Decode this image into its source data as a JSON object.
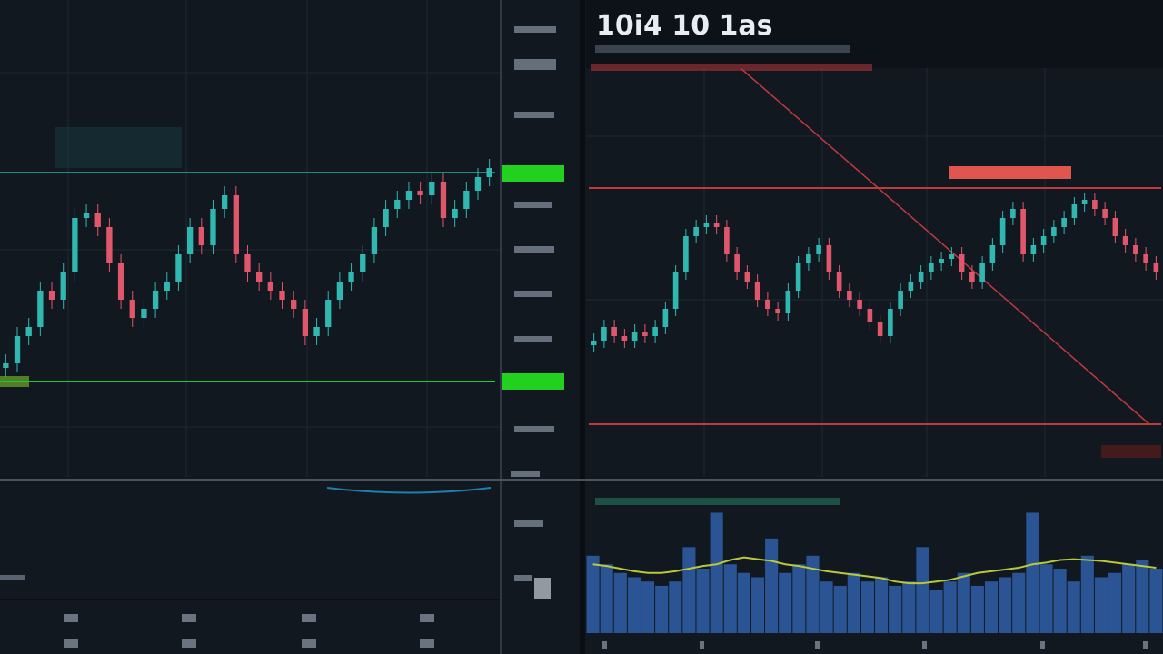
{
  "header": {
    "title": "10i4 10 1as"
  },
  "left_chart": {
    "type": "candlestick",
    "ylim": [
      0,
      525
    ],
    "open": [
      120,
      125,
      155,
      165,
      205,
      195,
      225,
      285,
      290,
      275,
      235,
      195,
      175,
      185,
      205,
      215,
      245,
      275,
      255,
      295,
      310,
      245,
      225,
      215,
      205,
      195,
      185,
      155,
      165,
      195,
      215,
      225,
      245,
      275,
      295,
      305,
      315,
      310,
      325,
      285,
      295,
      315,
      330
    ],
    "high": [
      135,
      165,
      175,
      215,
      215,
      235,
      295,
      300,
      300,
      285,
      245,
      205,
      195,
      215,
      225,
      255,
      285,
      285,
      305,
      320,
      320,
      255,
      235,
      225,
      215,
      205,
      195,
      175,
      205,
      225,
      235,
      255,
      285,
      305,
      315,
      325,
      325,
      335,
      335,
      305,
      325,
      340,
      350
    ],
    "low": [
      110,
      115,
      145,
      155,
      185,
      185,
      215,
      275,
      265,
      225,
      185,
      165,
      165,
      175,
      195,
      205,
      235,
      245,
      245,
      285,
      235,
      215,
      205,
      195,
      185,
      175,
      145,
      145,
      155,
      185,
      205,
      215,
      235,
      265,
      285,
      295,
      300,
      300,
      275,
      275,
      285,
      305,
      320
    ],
    "close": [
      125,
      155,
      165,
      205,
      195,
      225,
      285,
      290,
      275,
      235,
      195,
      175,
      185,
      205,
      215,
      245,
      275,
      255,
      295,
      310,
      245,
      225,
      215,
      205,
      195,
      185,
      155,
      165,
      195,
      215,
      225,
      245,
      275,
      295,
      305,
      315,
      310,
      325,
      285,
      295,
      315,
      330,
      340
    ],
    "up_color": "#2fb7b0",
    "down_color": "#e0566a",
    "levels": [
      {
        "value": 335,
        "color": "#1e8a80"
      },
      {
        "value": 105,
        "color": "#22c43a"
      }
    ]
  },
  "right_chart": {
    "type": "candlestick",
    "ylim": [
      0,
      450
    ],
    "open": [
      145,
      150,
      165,
      155,
      150,
      160,
      155,
      165,
      185,
      225,
      265,
      275,
      280,
      275,
      245,
      225,
      215,
      195,
      185,
      180,
      205,
      235,
      245,
      255,
      225,
      205,
      195,
      185,
      170,
      155,
      185,
      205,
      215,
      225,
      235,
      240,
      245,
      225,
      215,
      235,
      255,
      285,
      295,
      245,
      255,
      265,
      275,
      285,
      300,
      305,
      295,
      285,
      265,
      255,
      245,
      235
    ],
    "high": [
      158,
      173,
      173,
      163,
      168,
      168,
      173,
      193,
      233,
      273,
      283,
      288,
      288,
      283,
      253,
      233,
      223,
      203,
      193,
      213,
      243,
      253,
      263,
      263,
      233,
      213,
      203,
      193,
      178,
      193,
      213,
      223,
      233,
      243,
      248,
      253,
      253,
      233,
      243,
      263,
      293,
      303,
      303,
      263,
      273,
      283,
      293,
      308,
      313,
      313,
      303,
      293,
      273,
      263,
      253,
      243
    ],
    "low": [
      137,
      142,
      147,
      142,
      142,
      147,
      147,
      157,
      177,
      217,
      257,
      267,
      267,
      237,
      217,
      207,
      187,
      177,
      172,
      172,
      197,
      227,
      237,
      217,
      197,
      187,
      177,
      162,
      147,
      147,
      177,
      197,
      207,
      217,
      227,
      232,
      217,
      207,
      207,
      227,
      247,
      277,
      237,
      237,
      247,
      257,
      267,
      277,
      292,
      287,
      277,
      257,
      247,
      237,
      227,
      217
    ],
    "close": [
      150,
      165,
      155,
      150,
      160,
      155,
      165,
      185,
      225,
      265,
      275,
      280,
      275,
      245,
      225,
      215,
      195,
      185,
      180,
      205,
      235,
      245,
      255,
      225,
      205,
      195,
      185,
      170,
      155,
      185,
      205,
      215,
      225,
      235,
      240,
      245,
      225,
      215,
      235,
      255,
      285,
      295,
      245,
      255,
      265,
      275,
      285,
      300,
      305,
      295,
      285,
      265,
      255,
      245,
      235,
      225
    ],
    "up_color": "#2fb7b0",
    "down_color": "#e0566a",
    "levels": [
      {
        "value": 318,
        "color": "#c0393f"
      },
      {
        "value": 58,
        "color": "#c0393f"
      }
    ]
  },
  "volume": {
    "type": "bar",
    "ylim": [
      0,
      150
    ],
    "color": "#2f5fa8",
    "values": [
      90,
      80,
      70,
      65,
      60,
      55,
      60,
      100,
      75,
      140,
      80,
      70,
      65,
      110,
      70,
      80,
      90,
      60,
      55,
      70,
      60,
      65,
      55,
      60,
      100,
      50,
      60,
      70,
      55,
      60,
      65,
      70,
      140,
      80,
      75,
      60,
      90,
      65,
      70,
      80,
      85,
      75
    ],
    "average": [
      80,
      78,
      75,
      72,
      70,
      70,
      72,
      75,
      78,
      80,
      85,
      88,
      86,
      84,
      80,
      78,
      75,
      72,
      70,
      68,
      66,
      64,
      60,
      58,
      58,
      60,
      62,
      66,
      70,
      72,
      74,
      76,
      80,
      82,
      85,
      86,
      85,
      84,
      82,
      80,
      78,
      76
    ],
    "average_color": "#b9c93a"
  }
}
